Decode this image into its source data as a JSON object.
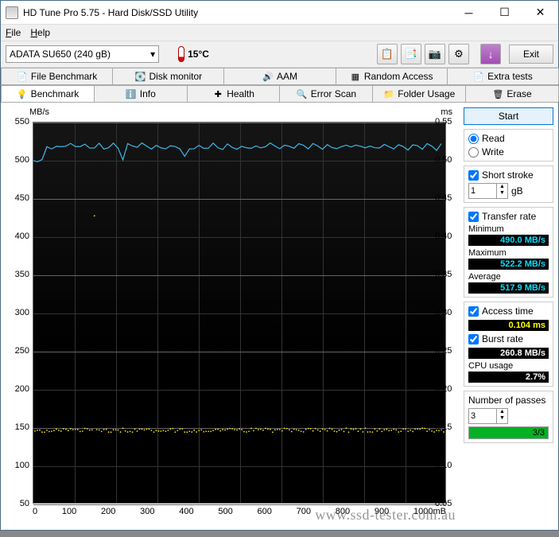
{
  "window": {
    "title": "HD Tune Pro 5.75 - Hard Disk/SSD Utility"
  },
  "menu": {
    "file": "File",
    "help": "Help"
  },
  "toolbar": {
    "drive": "ADATA SU650 (240 gB)",
    "temp": "15°C",
    "exit": "Exit"
  },
  "tabs_row1": [
    {
      "icon": "📄",
      "label": "File Benchmark"
    },
    {
      "icon": "💽",
      "label": "Disk monitor"
    },
    {
      "icon": "🔊",
      "label": "AAM"
    },
    {
      "icon": "▦",
      "label": "Random Access"
    },
    {
      "icon": "📄",
      "label": "Extra tests"
    }
  ],
  "tabs_row2": [
    {
      "icon": "💡",
      "label": "Benchmark",
      "active": true
    },
    {
      "icon": "ℹ️",
      "label": "Info"
    },
    {
      "icon": "✚",
      "label": "Health"
    },
    {
      "icon": "🔍",
      "label": "Error Scan"
    },
    {
      "icon": "📁",
      "label": "Folder Usage"
    },
    {
      "icon": "🗑",
      "label": "Erase"
    }
  ],
  "chart": {
    "y_left_label": "MB/s",
    "y_right_label": "ms",
    "y_left_ticks": [
      "550",
      "500",
      "450",
      "400",
      "350",
      "300",
      "250",
      "200",
      "150",
      "100",
      "50"
    ],
    "y_right_ticks": [
      "0.55",
      "0.50",
      "0.45",
      "0.40",
      "0.35",
      "0.30",
      "0.25",
      "0.20",
      "0.15",
      "0.10",
      "0.05"
    ],
    "x_ticks": [
      "0",
      "100",
      "200",
      "300",
      "400",
      "500",
      "600",
      "700",
      "800",
      "900",
      "1000mB"
    ],
    "blue_line_y_mb": 515,
    "blue_line_min_mb": 490,
    "yellow_band_y_ms": 0.105,
    "colors": {
      "blue": "#3fb8e8",
      "yellow": "#f5e600",
      "bg_top": "#151515",
      "bg_bot": "#000000",
      "grid_major": "#666666",
      "grid_minor": "#333333"
    }
  },
  "side": {
    "start": "Start",
    "read": "Read",
    "write": "Write",
    "short_stroke": "Short stroke",
    "short_stroke_val": "1",
    "short_stroke_unit": "gB",
    "transfer_rate": "Transfer rate",
    "min_label": "Minimum",
    "min_val": "490.0 MB/s",
    "max_label": "Maximum",
    "max_val": "522.2 MB/s",
    "avg_label": "Average",
    "avg_val": "517.9 MB/s",
    "access_time": "Access time",
    "access_val": "0.104 ms",
    "burst_rate": "Burst rate",
    "burst_val": "260.8 MB/s",
    "cpu_label": "CPU usage",
    "cpu_val": "2.7%",
    "passes_label": "Number of passes",
    "passes_val": "3",
    "prog_txt": "3/3",
    "prog_pct": 100
  },
  "watermark": "www.ssd-tester.com.au"
}
